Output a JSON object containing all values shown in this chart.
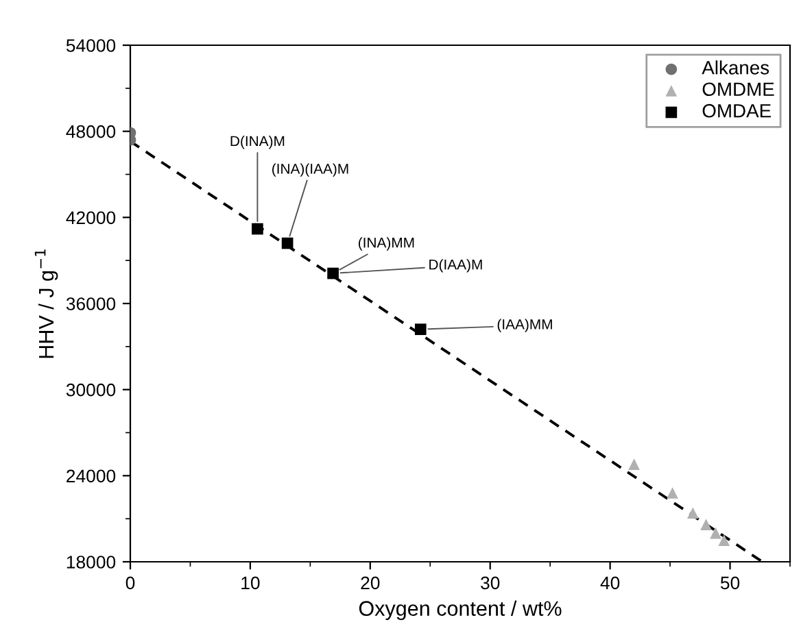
{
  "chart_data": {
    "type": "scatter",
    "xlabel": "Oxygen content / wt%",
    "ylabel": "HHV / J g$^{−1}$",
    "xlim": [
      0,
      55
    ],
    "xticks": [
      0,
      10,
      20,
      30,
      40,
      50
    ],
    "ylim": [
      18000,
      54000
    ],
    "yticks": [
      18000,
      24000,
      30000,
      36000,
      42000,
      48000,
      54000
    ],
    "legend": "top right",
    "grid": false,
    "series": [
      {
        "name": "Alkanes",
        "color": "#707070",
        "marker": "circle",
        "x": [
          0,
          0
        ],
        "values": [
          47900,
          47400
        ]
      },
      {
        "name": "OMDME",
        "color": "#b0b0b0",
        "marker": "triangle",
        "x": [
          42.0,
          45.2,
          46.9,
          48.0,
          48.8,
          49.5
        ],
        "values": [
          24800,
          22800,
          21400,
          20600,
          20000,
          19500
        ]
      },
      {
        "name": "OMDAE",
        "color": "#000000",
        "marker": "square",
        "x": [
          10.6,
          13.1,
          16.9,
          24.2
        ],
        "values": [
          41200,
          40200,
          38100,
          34200
        ]
      },
      {
        "type": "line",
        "color": "#000000",
        "line_style": "dashed",
        "marker": "none",
        "x": [
          0,
          52.7
        ],
        "values": [
          47300,
          18000
        ]
      }
    ],
    "annotations": [
      {
        "text": "D(INA)M",
        "x": 10.6,
        "y": 41200
      },
      {
        "text": "(INA)(IAA)M",
        "x": 13.1,
        "y": 40200
      },
      {
        "text": "(INA)MM",
        "x": 16.9,
        "y": 38100
      },
      {
        "text": "D(IAA)M",
        "x": 16.9,
        "y": 38100
      },
      {
        "text": "(IAA)MM",
        "x": 24.2,
        "y": 34200
      }
    ]
  }
}
